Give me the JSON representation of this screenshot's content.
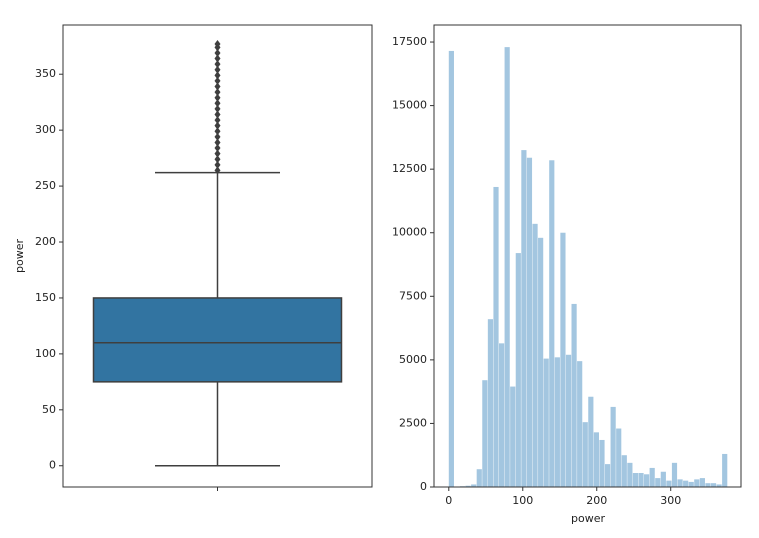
{
  "chart_data": [
    {
      "type": "box",
      "ylabel": "power",
      "categories": [
        null
      ],
      "whislo": 0,
      "q1": 75,
      "median": 110,
      "q3": 150,
      "whishi": 262,
      "fliers": [
        264,
        269,
        274,
        279,
        284,
        289,
        294,
        299,
        304,
        309,
        314,
        319,
        324,
        329,
        334,
        339,
        344,
        349,
        354,
        359,
        364,
        369,
        374,
        377
      ],
      "color": "#3274a1",
      "line_color": "#3f3f3f",
      "ylim": [
        -19,
        394
      ],
      "yticks": [
        0,
        50,
        100,
        150,
        200,
        250,
        300,
        350
      ]
    },
    {
      "type": "histogram",
      "xlabel": "power",
      "color": "#a3c6e0",
      "bins": [
        0,
        7.54,
        15.08,
        22.62,
        30.16,
        37.7,
        45.24,
        52.78,
        60.32,
        67.86,
        75.4,
        82.94,
        90.48,
        98.02,
        105.56,
        113.1,
        120.64,
        128.18,
        135.72,
        143.26,
        150.8,
        158.34,
        165.88,
        173.42,
        180.96,
        188.5,
        196.04,
        203.58,
        211.12,
        218.66,
        226.2,
        233.74,
        241.28,
        248.82,
        256.36,
        263.9,
        271.44,
        278.98,
        286.52,
        294.06,
        301.6,
        309.14,
        316.68,
        324.22,
        331.76,
        339.3,
        346.84,
        354.38,
        361.92,
        369.46,
        377
      ],
      "values": [
        17150,
        0,
        30,
        50,
        100,
        700,
        4200,
        6600,
        11800,
        5650,
        17300,
        3950,
        9200,
        13250,
        12950,
        10350,
        9800,
        5050,
        12850,
        5100,
        10000,
        5200,
        7200,
        4950,
        2550,
        3550,
        2150,
        1850,
        900,
        3150,
        2300,
        1250,
        950,
        550,
        550,
        500,
        750,
        350,
        600,
        250,
        950,
        300,
        250,
        200,
        300,
        350,
        150,
        150,
        100,
        1300
      ],
      "xlim": [
        -20,
        395
      ],
      "xticks": [
        0,
        100,
        200,
        300
      ],
      "ylim": [
        0,
        18170
      ],
      "yticks": [
        0,
        2500,
        5000,
        7500,
        10000,
        12500,
        15000,
        17500
      ]
    }
  ]
}
